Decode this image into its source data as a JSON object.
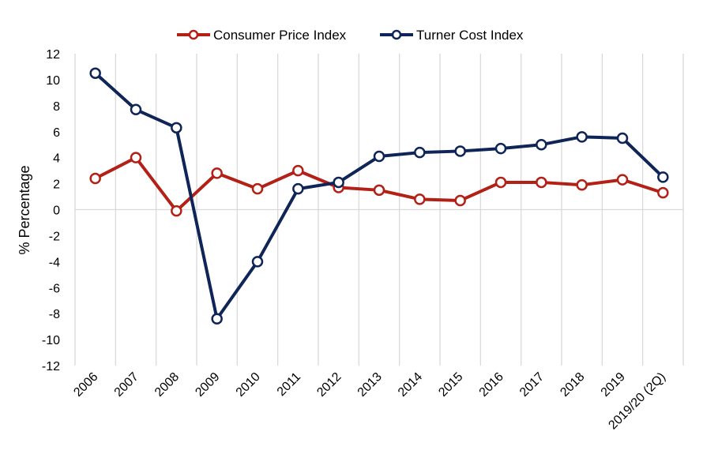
{
  "chart_data": {
    "type": "line",
    "title": "",
    "xlabel": "",
    "ylabel": "% Percentage",
    "ylim": [
      -12,
      12
    ],
    "yticks": [
      "12",
      "10",
      "8",
      "6",
      "4",
      "2",
      "0",
      "-2",
      "-4",
      "-6",
      "-8",
      "-10",
      "-12"
    ],
    "categories": [
      "2006",
      "2007",
      "2008",
      "2009",
      "2010",
      "2011",
      "2012",
      "2013",
      "2014",
      "2015",
      "2016",
      "2017",
      "2018",
      "2019",
      "2019/20 (2Q)"
    ],
    "grid": "vertical",
    "legend_position": "top",
    "series": [
      {
        "name": "Consumer Price Index",
        "color": "#b22016",
        "values": [
          2.4,
          4.0,
          -0.1,
          2.8,
          1.6,
          3.0,
          1.7,
          1.5,
          0.8,
          0.7,
          2.1,
          2.1,
          1.9,
          2.3,
          1.3
        ]
      },
      {
        "name": "Turner Cost Index",
        "color": "#0f2557",
        "values": [
          10.5,
          7.7,
          6.3,
          -8.4,
          -4.0,
          1.6,
          2.1,
          4.1,
          4.4,
          4.5,
          4.7,
          5.0,
          5.6,
          5.5,
          2.5
        ]
      }
    ]
  }
}
